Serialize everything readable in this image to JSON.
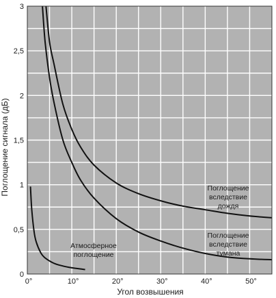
{
  "chart_data": {
    "type": "line",
    "title": "",
    "xlabel": "Угол возвышения",
    "ylabel": "Поглощение сигнала (дБ)",
    "xlim": [
      0,
      55
    ],
    "ylim": [
      0,
      3
    ],
    "grid": true,
    "x_ticks": [
      0,
      10,
      20,
      30,
      40,
      50
    ],
    "x_tick_labels": [
      "0°",
      "10°",
      "20°",
      "30°",
      "40°",
      "50°"
    ],
    "y_ticks": [
      0,
      0.5,
      1,
      1.5,
      2,
      2.5,
      3
    ],
    "y_tick_labels": [
      "0",
      "0,5",
      "1",
      "1,5",
      "2",
      "2,5",
      "3"
    ],
    "series": [
      {
        "name": "Поглощение вследствие дождя",
        "x": [
          4.2,
          5,
          6,
          8,
          10,
          12,
          15,
          20,
          25,
          30,
          35,
          40,
          45,
          50,
          55
        ],
        "y": [
          3.0,
          2.6,
          2.35,
          1.9,
          1.62,
          1.42,
          1.22,
          1.02,
          0.9,
          0.82,
          0.76,
          0.72,
          0.68,
          0.65,
          0.63
        ]
      },
      {
        "name": "Поглощение вследствие тумана",
        "x": [
          3.4,
          4,
          5,
          6,
          8,
          10,
          12,
          15,
          20,
          25,
          30,
          35,
          40,
          45,
          50,
          55
        ],
        "y": [
          3.0,
          2.6,
          2.2,
          1.92,
          1.5,
          1.25,
          1.05,
          0.85,
          0.62,
          0.47,
          0.37,
          0.29,
          0.23,
          0.19,
          0.17,
          0.16
        ]
      },
      {
        "name": "Атмосферное поглощение",
        "x": [
          0.7,
          1,
          1.5,
          2,
          3,
          4,
          6,
          8,
          10,
          13
        ],
        "y": [
          0.98,
          0.72,
          0.48,
          0.36,
          0.24,
          0.18,
          0.12,
          0.09,
          0.07,
          0.05
        ]
      }
    ],
    "annotations": [
      {
        "series": 0,
        "lines": [
          "Поглощение",
          "вследствие",
          "дождя"
        ]
      },
      {
        "series": 1,
        "lines": [
          "Поглощение",
          "вследствие",
          "тумана"
        ]
      },
      {
        "series": 2,
        "lines": [
          "Атмосферное",
          "поглощение"
        ]
      }
    ],
    "colors": {
      "plot_bg": "#b2b2b2",
      "grid": "#ffffff",
      "line": "#111111",
      "text": "#1a1a1a"
    }
  }
}
